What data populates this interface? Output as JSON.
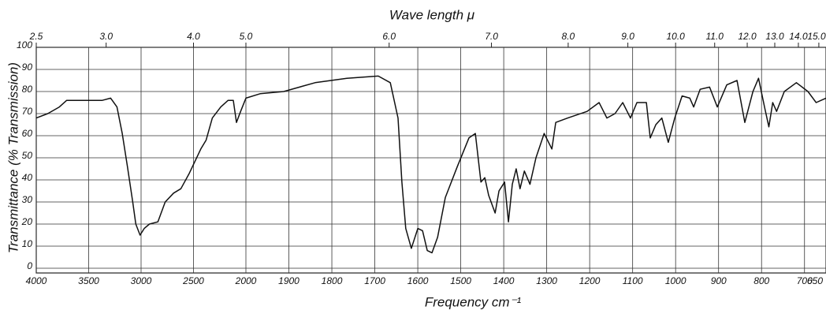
{
  "chart_data": {
    "type": "line",
    "top_axis_label": "Wave length μ",
    "xlabel": "Frequency cm⁻¹",
    "ylabel": "Transmittance (% Transmission)",
    "color": "#111111",
    "grid": true,
    "xlim": [
      4000,
      650
    ],
    "xticks": [
      4000,
      3500,
      3000,
      2500,
      2000,
      1900,
      1800,
      1700,
      1600,
      1500,
      1400,
      1300,
      1200,
      1100,
      1000,
      900,
      800,
      700,
      650
    ],
    "x2ticks": [
      2.5,
      {
        "value": 3,
        "label": "3.0"
      },
      {
        "value": 4,
        "label": "4.0"
      },
      {
        "value": 5,
        "label": "5.0"
      },
      {
        "value": 6,
        "label": "6.0"
      },
      {
        "value": 7,
        "label": "7.0"
      },
      {
        "value": 8,
        "label": "8.0"
      },
      {
        "value": 9,
        "label": "9.0"
      },
      {
        "value": 10,
        "label": "10.0"
      },
      {
        "value": 11,
        "label": "11.0"
      },
      {
        "value": 12,
        "label": "12.0"
      },
      {
        "value": 13,
        "label": "13.0"
      },
      {
        "value": 14,
        "label": "14.0"
      },
      {
        "value": 15,
        "label": "15.0"
      }
    ],
    "ylim": [
      0,
      100
    ],
    "yticks": [
      0,
      10,
      20,
      30,
      40,
      50,
      60,
      70,
      80,
      90,
      100
    ],
    "x": [
      4000,
      3890,
      3780,
      3710,
      3590,
      3370,
      3290,
      3230,
      3180,
      3130,
      3080,
      3050,
      3010,
      2970,
      2920,
      2840,
      2770,
      2690,
      2620,
      2540,
      2430,
      2380,
      2320,
      2240,
      2170,
      2120,
      2090,
      2050,
      2000,
      1967,
      1912,
      1839,
      1765,
      1692,
      1664,
      1646,
      1637,
      1628,
      1615,
      1600,
      1589,
      1578,
      1567,
      1554,
      1536,
      1508,
      1481,
      1466,
      1453,
      1444,
      1435,
      1420,
      1411,
      1398,
      1389,
      1380,
      1371,
      1362,
      1352,
      1339,
      1325,
      1306,
      1288,
      1279,
      1251,
      1206,
      1178,
      1160,
      1141,
      1123,
      1105,
      1090,
      1068,
      1059,
      1046,
      1032,
      1017,
      1002,
      985,
      967,
      958,
      943,
      921,
      903,
      881,
      857,
      839,
      820,
      807,
      793,
      783,
      774,
      765,
      747,
      719,
      692,
      673,
      650
    ],
    "values": [
      68,
      70,
      73,
      76,
      76,
      76,
      77,
      73,
      61,
      46,
      30,
      20,
      15,
      18,
      20,
      21,
      30,
      34,
      36,
      43,
      54,
      58,
      68,
      73,
      76,
      76,
      66,
      71,
      77,
      79,
      80,
      84,
      86,
      87,
      84,
      68,
      39,
      18,
      9,
      18,
      17,
      8,
      7,
      14,
      32,
      46,
      59,
      61,
      39,
      41,
      33,
      25,
      35,
      39,
      21,
      38,
      45,
      36,
      44,
      38,
      50,
      61,
      54,
      66,
      68,
      71,
      75,
      68,
      70,
      75,
      68,
      75,
      75,
      59,
      65,
      68,
      57,
      68,
      78,
      77,
      73,
      81,
      82,
      73,
      83,
      85,
      66,
      80,
      86,
      73,
      64,
      75,
      71,
      80,
      84,
      80,
      75,
      77
    ]
  }
}
